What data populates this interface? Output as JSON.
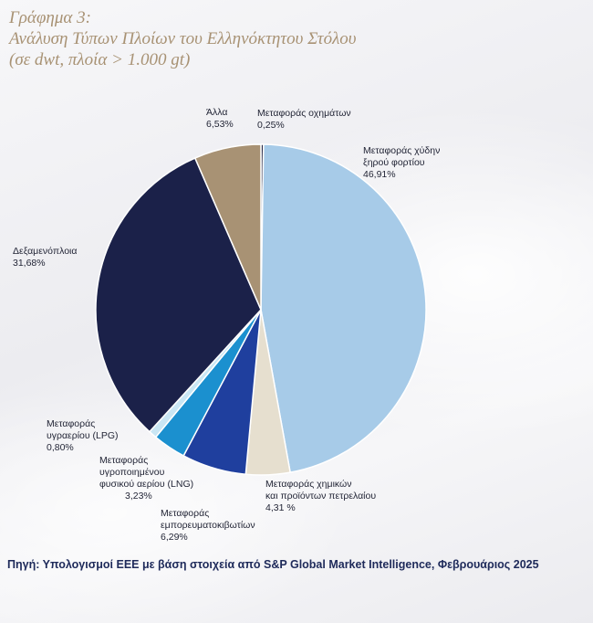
{
  "header": {
    "title_line1": "Γράφημα 3:",
    "title_line2": "Ανάλυση Τύπων Πλοίων του Ελληνόκτητου Στόλου",
    "title_line3": "(σε dwt, πλοία > 1.000 gt)"
  },
  "chart_data": {
    "type": "pie",
    "slices": [
      {
        "label": "Μεταφοράς οχημάτων",
        "value": 0.25,
        "value_text": "0,25%",
        "color": "#2a2d4a"
      },
      {
        "label": "Μεταφοράς χύδην ξηρού φορτίου",
        "value": 46.91,
        "value_text": "46,91%",
        "color": "#a7cbe8"
      },
      {
        "label": "Μεταφοράς χημικών και προϊόντων πετρελαίου",
        "value": 4.31,
        "value_text": "4,31 %",
        "color": "#e6dfcf"
      },
      {
        "label": "Μεταφοράς εμπορευματοκιβωτίων",
        "value": 6.29,
        "value_text": "6,29%",
        "color": "#1f3f9e"
      },
      {
        "label": "Μεταφοράς υγροποιημένου φυσικού αερίου (LNG)",
        "value": 3.23,
        "value_text": "3,23%",
        "color": "#1b90cf"
      },
      {
        "label": "Μεταφοράς υγραερίου (LPG)",
        "value": 0.8,
        "value_text": "0,80%",
        "color": "#c9e6f4"
      },
      {
        "label": "Δεξαμενόπλοια",
        "value": 31.68,
        "value_text": "31,68%",
        "color": "#1b2149"
      },
      {
        "label": "Άλλα",
        "value": 6.53,
        "value_text": "6,53%",
        "color": "#a89274"
      }
    ]
  },
  "labels": {
    "vehicles": {
      "line1": "Μεταφοράς οχημάτων",
      "value": "0,25%"
    },
    "dry_bulk": {
      "line1": "Μεταφοράς χύδην",
      "line2": "ξηρού φορτίου",
      "value": "46,91%"
    },
    "chemicals": {
      "line1": "Μεταφοράς χημικών",
      "line2": "και προϊόντων πετρελαίου",
      "value": "4,31 %"
    },
    "containers": {
      "line1": "Μεταφοράς",
      "line2": "εμπορευματοκιβωτίων",
      "value": "6,29%"
    },
    "lng": {
      "line1": "Μεταφοράς",
      "line2": "υγροποιημένου",
      "line3": "φυσικού αερίου (LNG)",
      "value": "3,23%"
    },
    "lpg": {
      "line1": "Μεταφοράς",
      "line2": "υγραερίου (LPG)",
      "value": "0,80%"
    },
    "tankers": {
      "line1": "Δεξαμενόπλοια",
      "value": "31,68%"
    },
    "other": {
      "line1": "Άλλα",
      "value": "6,53%"
    }
  },
  "footer": {
    "source": "Πηγή: Υπολογισμοί ΕΕΕ με βάση στοιχεία από S&P Global Market Intelligence, Φεβρουάριος 2025"
  }
}
